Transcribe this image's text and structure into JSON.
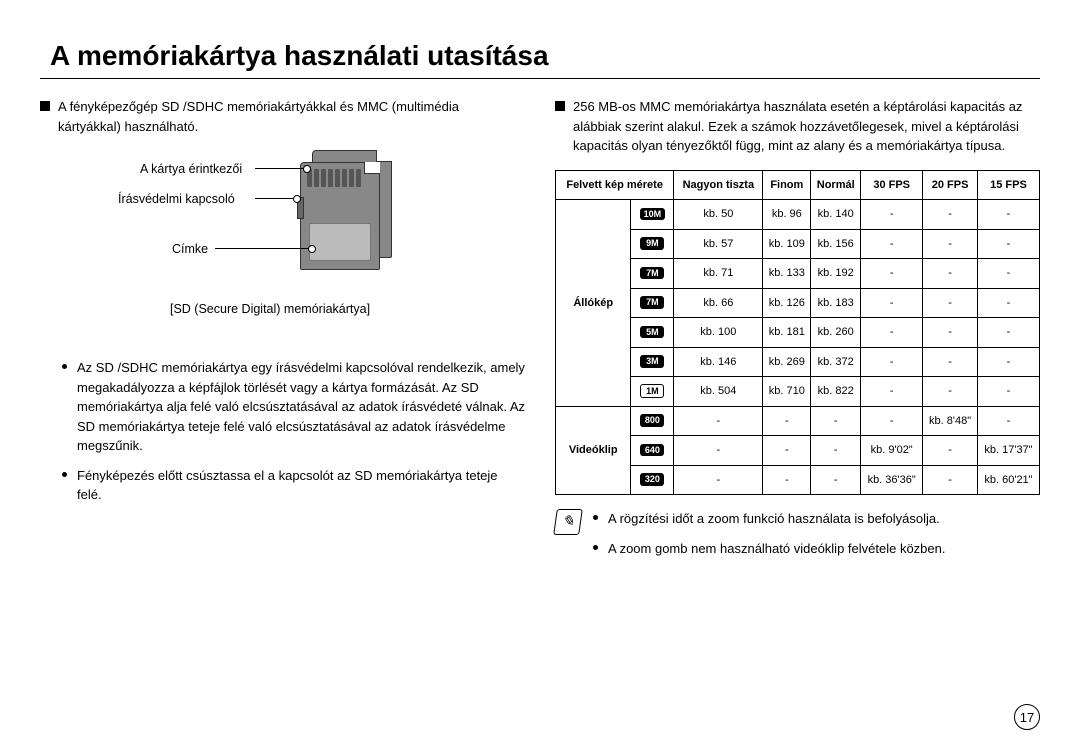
{
  "page_title": "A memóriakártya használati utasítása",
  "page_number": "17",
  "left": {
    "intro": "A fényképezőgép SD /SDHC memóriakártyákkal és MMC (multimédia kártyákkal) használható.",
    "diagram": {
      "label_pins": "A kártya érintkezői",
      "label_switch": "Írásvédelmi kapcsoló",
      "label_label": "Címke",
      "caption": "[SD (Secure Digital) memóriakártya]"
    },
    "b1": "Az SD /SDHC memóriakártya egy írásvédelmi kapcsolóval rendelkezik, amely megakadályozza a képfájlok törlését vagy a kártya formázását. Az SD memóriakártya alja felé való elcsúsztatásával az adatok írásvédeté válnak. Az SD memóriakártya teteje felé való elcsúsztatásával az adatok írásvédelme megszűnik.",
    "b2": "Fényképezés előtt csúsztassa el a kapcsolót az SD memóriakártya teteje felé."
  },
  "right": {
    "intro": "256 MB-os MMC memóriakártya használata esetén a képtárolási kapacitás az alábbiak szerint alakul. Ezek a számok hozzávetőlegesek, mivel a képtárolási kapacitás olyan tényezőktől függ, mint az alany és a memóriakártya típusa.",
    "headers": [
      "Felvett kép mérete",
      "Nagyon tiszta",
      "Finom",
      "Normál",
      "30 FPS",
      "20 FPS",
      "15 FPS"
    ],
    "row_labels": {
      "still": "Állókép",
      "video": "Videóklip"
    },
    "still_rows": [
      {
        "badge": "10M",
        "cls": "",
        "vals": [
          "kb. 50",
          "kb. 96",
          "kb. 140",
          "-",
          "-",
          "-"
        ]
      },
      {
        "badge": "9M",
        "cls": "",
        "vals": [
          "kb. 57",
          "kb. 109",
          "kb. 156",
          "-",
          "-",
          "-"
        ]
      },
      {
        "badge": "7M",
        "cls": "",
        "vals": [
          "kb. 71",
          "kb. 133",
          "kb. 192",
          "-",
          "-",
          "-"
        ]
      },
      {
        "badge": "7M",
        "cls": "",
        "vals": [
          "kb. 66",
          "kb. 126",
          "kb. 183",
          "-",
          "-",
          "-"
        ]
      },
      {
        "badge": "5M",
        "cls": "",
        "vals": [
          "kb. 100",
          "kb. 181",
          "kb. 260",
          "-",
          "-",
          "-"
        ]
      },
      {
        "badge": "3M",
        "cls": "",
        "vals": [
          "kb. 146",
          "kb. 269",
          "kb. 372",
          "-",
          "-",
          "-"
        ]
      },
      {
        "badge": "1M",
        "cls": "outline",
        "vals": [
          "kb. 504",
          "kb. 710",
          "kb. 822",
          "-",
          "-",
          "-"
        ]
      }
    ],
    "video_rows": [
      {
        "badge": "800",
        "cls": "",
        "vals": [
          "-",
          "-",
          "-",
          "-",
          "kb. 8'48\"",
          "-"
        ]
      },
      {
        "badge": "640",
        "cls": "",
        "vals": [
          "-",
          "-",
          "-",
          "kb. 9'02\"",
          "-",
          "kb. 17'37\""
        ]
      },
      {
        "badge": "320",
        "cls": "",
        "vals": [
          "-",
          "-",
          "-",
          "kb. 36'36\"",
          "-",
          "kb. 60'21\""
        ]
      }
    ],
    "note1": "A rögzítési időt a zoom funkció használata is befolyásolja.",
    "note2": "A zoom gomb nem használható videóklip felvétele közben."
  },
  "colors": {
    "text": "#000000",
    "card_body": "#888888",
    "card_label": "#bbbbbb"
  }
}
